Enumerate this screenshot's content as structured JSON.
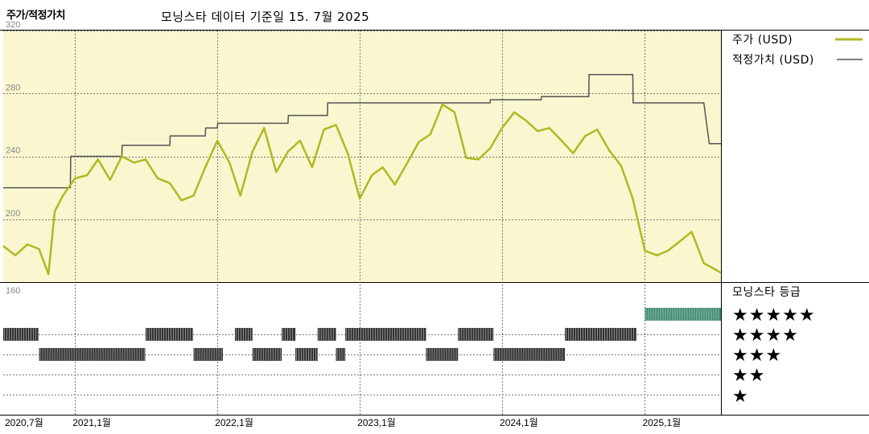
{
  "header": {
    "title": "주가/적정가치",
    "subtitle": "모닝스타 데이터 기준일 15. 7월 2025"
  },
  "legend": {
    "price_label": "주가 (USD)",
    "fair_value_label": "적정가치 (USD)",
    "rating_title": "모닝스타 등급",
    "rating_stars": [
      "★★★★★",
      "★★★★",
      "★★★",
      "★★",
      "★"
    ]
  },
  "colors": {
    "price": "#b0b824",
    "fair_value": "#555555",
    "plot_bg": "#faf6cf",
    "rating_bar": "#333333",
    "rating_bar_5": "#3e8a6e"
  },
  "chart_data": {
    "type": "line",
    "x_start": "2020-07-01",
    "x_end": "2025-07-15",
    "x_ticks": [
      "2020,7월",
      "2021,1월",
      "2022,1월",
      "2023,1월",
      "2024,1월",
      "2025,1월"
    ],
    "x_tick_dates": [
      "2020-07-01",
      "2021-01-01",
      "2022-01-01",
      "2023-01-01",
      "2024-01-01",
      "2025-01-01"
    ],
    "y_ticks": [
      160,
      200,
      240,
      280,
      320
    ],
    "ylim": [
      160,
      320
    ],
    "series": [
      {
        "name": "주가 (USD)",
        "points": [
          [
            "2020-07-01",
            183
          ],
          [
            "2020-08-01",
            177
          ],
          [
            "2020-09-01",
            184
          ],
          [
            "2020-10-01",
            181
          ],
          [
            "2020-10-25",
            165
          ],
          [
            "2020-11-10",
            205
          ],
          [
            "2020-12-01",
            215
          ],
          [
            "2021-01-01",
            226
          ],
          [
            "2021-02-01",
            228
          ],
          [
            "2021-03-01",
            238
          ],
          [
            "2021-04-01",
            225
          ],
          [
            "2021-05-01",
            240
          ],
          [
            "2021-06-01",
            236
          ],
          [
            "2021-07-01",
            238
          ],
          [
            "2021-08-01",
            226
          ],
          [
            "2021-09-01",
            223
          ],
          [
            "2021-10-01",
            212
          ],
          [
            "2021-11-01",
            215
          ],
          [
            "2021-12-01",
            233
          ],
          [
            "2022-01-01",
            250
          ],
          [
            "2022-02-01",
            236
          ],
          [
            "2022-03-01",
            215
          ],
          [
            "2022-04-01",
            243
          ],
          [
            "2022-05-01",
            258
          ],
          [
            "2022-06-01",
            230
          ],
          [
            "2022-07-01",
            243
          ],
          [
            "2022-08-01",
            250
          ],
          [
            "2022-09-01",
            233
          ],
          [
            "2022-10-01",
            257
          ],
          [
            "2022-11-01",
            260
          ],
          [
            "2022-12-01",
            242
          ],
          [
            "2023-01-01",
            213
          ],
          [
            "2023-02-01",
            228
          ],
          [
            "2023-03-01",
            233
          ],
          [
            "2023-04-01",
            222
          ],
          [
            "2023-05-01",
            235
          ],
          [
            "2023-06-01",
            249
          ],
          [
            "2023-07-01",
            254
          ],
          [
            "2023-08-01",
            273
          ],
          [
            "2023-09-01",
            268
          ],
          [
            "2023-10-01",
            239
          ],
          [
            "2023-11-01",
            238
          ],
          [
            "2023-12-01",
            245
          ],
          [
            "2024-01-01",
            258
          ],
          [
            "2024-02-01",
            268
          ],
          [
            "2024-03-01",
            263
          ],
          [
            "2024-04-01",
            256
          ],
          [
            "2024-05-01",
            258
          ],
          [
            "2024-06-01",
            250
          ],
          [
            "2024-07-01",
            242
          ],
          [
            "2024-08-01",
            253
          ],
          [
            "2024-09-01",
            257
          ],
          [
            "2024-10-01",
            244
          ],
          [
            "2024-11-01",
            234
          ],
          [
            "2024-12-01",
            213
          ],
          [
            "2025-01-01",
            180
          ],
          [
            "2025-02-01",
            177
          ],
          [
            "2025-03-01",
            180
          ],
          [
            "2025-04-01",
            186
          ],
          [
            "2025-05-01",
            192
          ],
          [
            "2025-06-01",
            172
          ],
          [
            "2025-07-15",
            166
          ]
        ]
      },
      {
        "name": "적정가치 (USD)",
        "points": [
          [
            "2020-07-01",
            220
          ],
          [
            "2020-12-20",
            220
          ],
          [
            "2020-12-21",
            240
          ],
          [
            "2021-05-01",
            240
          ],
          [
            "2021-05-02",
            247
          ],
          [
            "2021-09-01",
            247
          ],
          [
            "2021-09-02",
            253
          ],
          [
            "2021-12-01",
            253
          ],
          [
            "2021-12-02",
            258
          ],
          [
            "2022-01-01",
            258
          ],
          [
            "2022-01-02",
            261
          ],
          [
            "2022-07-01",
            261
          ],
          [
            "2022-07-02",
            266
          ],
          [
            "2022-10-10",
            266
          ],
          [
            "2022-10-11",
            274
          ],
          [
            "2023-12-01",
            274
          ],
          [
            "2023-12-02",
            276
          ],
          [
            "2024-04-10",
            276
          ],
          [
            "2024-04-11",
            278
          ],
          [
            "2024-08-10",
            278
          ],
          [
            "2024-08-11",
            292
          ],
          [
            "2024-12-01",
            292
          ],
          [
            "2024-12-02",
            274
          ],
          [
            "2025-06-01",
            274
          ],
          [
            "2025-06-15",
            248
          ],
          [
            "2025-07-15",
            248
          ]
        ]
      }
    ],
    "rating_history": [
      {
        "stars": 4,
        "start": "2020-07-01",
        "end": "2020-09-30"
      },
      {
        "stars": 3,
        "start": "2020-10-01",
        "end": "2021-06-30"
      },
      {
        "stars": 4,
        "start": "2021-07-01",
        "end": "2021-10-31"
      },
      {
        "stars": 3,
        "start": "2021-11-01",
        "end": "2022-01-15"
      },
      {
        "stars": 4,
        "start": "2022-02-15",
        "end": "2022-04-01"
      },
      {
        "stars": 3,
        "start": "2022-04-01",
        "end": "2022-06-15"
      },
      {
        "stars": 4,
        "start": "2022-06-15",
        "end": "2022-07-20"
      },
      {
        "stars": 3,
        "start": "2022-07-20",
        "end": "2022-09-15"
      },
      {
        "stars": 4,
        "start": "2022-09-15",
        "end": "2022-11-01"
      },
      {
        "stars": 3,
        "start": "2022-11-01",
        "end": "2022-11-25"
      },
      {
        "stars": 4,
        "start": "2022-11-25",
        "end": "2023-06-20"
      },
      {
        "stars": 3,
        "start": "2023-06-20",
        "end": "2023-09-10"
      },
      {
        "stars": 4,
        "start": "2023-09-10",
        "end": "2023-12-10"
      },
      {
        "stars": 3,
        "start": "2023-12-10",
        "end": "2024-06-10"
      },
      {
        "stars": 4,
        "start": "2024-06-10",
        "end": "2024-12-10"
      },
      {
        "stars": 5,
        "start": "2025-01-01",
        "end": "2025-07-15"
      }
    ]
  }
}
